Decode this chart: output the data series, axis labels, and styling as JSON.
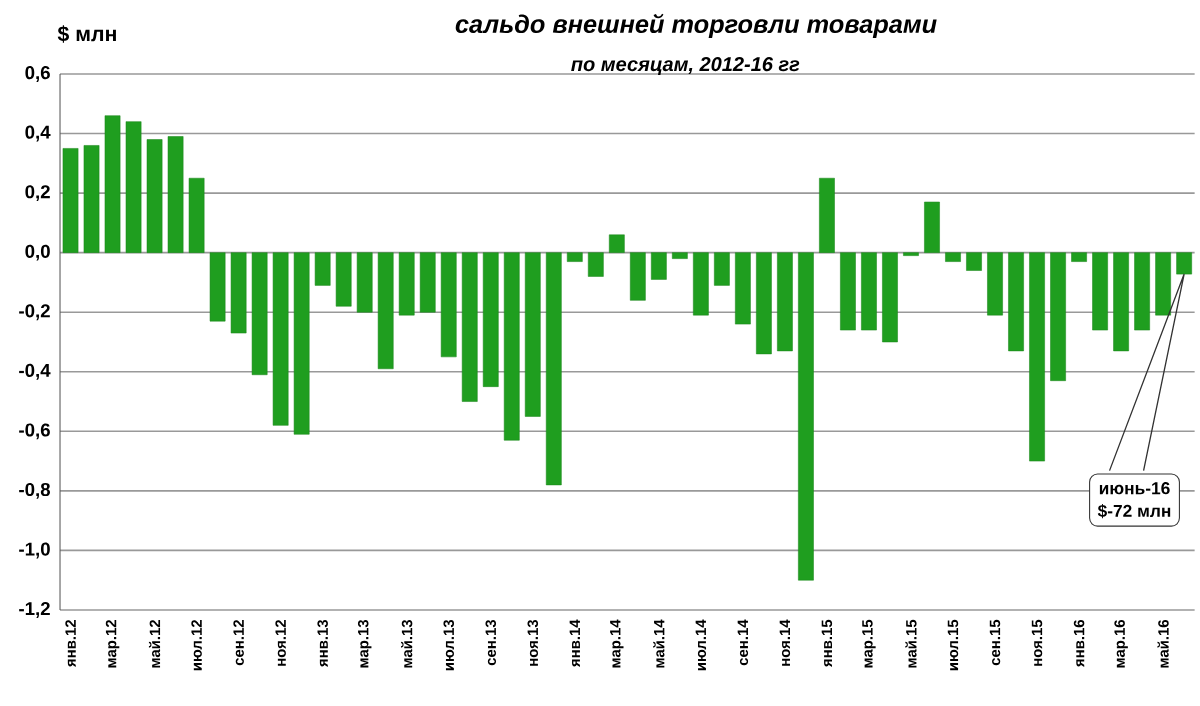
{
  "chart_data": {
    "type": "bar",
    "title": "сальдо внешней торговли товарами",
    "subtitle": "по месяцам, 2012-16 гг",
    "ylabel": "$ млн",
    "categories": [
      "янв.12",
      null,
      "мар.12",
      null,
      "май.12",
      null,
      "июл.12",
      null,
      "сен.12",
      null,
      "ноя.12",
      null,
      "янв.13",
      null,
      "мар.13",
      null,
      "май.13",
      null,
      "июл.13",
      null,
      "сен.13",
      null,
      "ноя.13",
      null,
      "янв.14",
      null,
      "мар.14",
      null,
      "май.14",
      null,
      "июл.14",
      null,
      "сен.14",
      null,
      "ноя.14",
      null,
      "янв.15",
      null,
      "мар.15",
      null,
      "май.15",
      null,
      "июл.15",
      null,
      "сен.15",
      null,
      "ноя.15",
      null,
      "янв.16",
      null,
      "мар.16",
      null,
      "май.16",
      null
    ],
    "values": [
      0.35,
      0.36,
      0.46,
      0.44,
      0.38,
      0.39,
      0.25,
      -0.23,
      -0.27,
      -0.41,
      -0.58,
      -0.61,
      -0.11,
      -0.18,
      -0.2,
      -0.39,
      -0.21,
      -0.2,
      -0.35,
      -0.5,
      -0.45,
      -0.63,
      -0.55,
      -0.78,
      -0.03,
      -0.08,
      0.06,
      -0.16,
      -0.09,
      -0.02,
      -0.21,
      -0.11,
      -0.24,
      -0.34,
      -0.33,
      -1.1,
      0.25,
      -0.26,
      -0.26,
      -0.3,
      -0.01,
      0.17,
      -0.03,
      -0.06,
      -0.21,
      -0.33,
      -0.7,
      -0.43,
      -0.03,
      -0.26,
      -0.33,
      -0.26,
      -0.21,
      -0.072
    ],
    "color": "#1f9e1f",
    "ylim": [
      -1.2,
      0.6
    ],
    "yticks": [
      {
        "value": -1.2,
        "label": "-1,2"
      },
      {
        "value": -1.0,
        "label": "-1,0"
      },
      {
        "value": -0.8,
        "label": "-0,8"
      },
      {
        "value": -0.6,
        "label": "-0,6"
      },
      {
        "value": -0.4,
        "label": "-0,4"
      },
      {
        "value": -0.2,
        "label": "-0,2"
      },
      {
        "value": 0,
        "label": "0,0"
      },
      {
        "value": 0.2,
        "label": "0,2"
      },
      {
        "value": 0.4,
        "label": "0,4"
      },
      {
        "value": 0.6,
        "label": "0,6"
      }
    ],
    "grid": "y",
    "annotations": [
      "июнь-16",
      "$-72 млн"
    ]
  }
}
